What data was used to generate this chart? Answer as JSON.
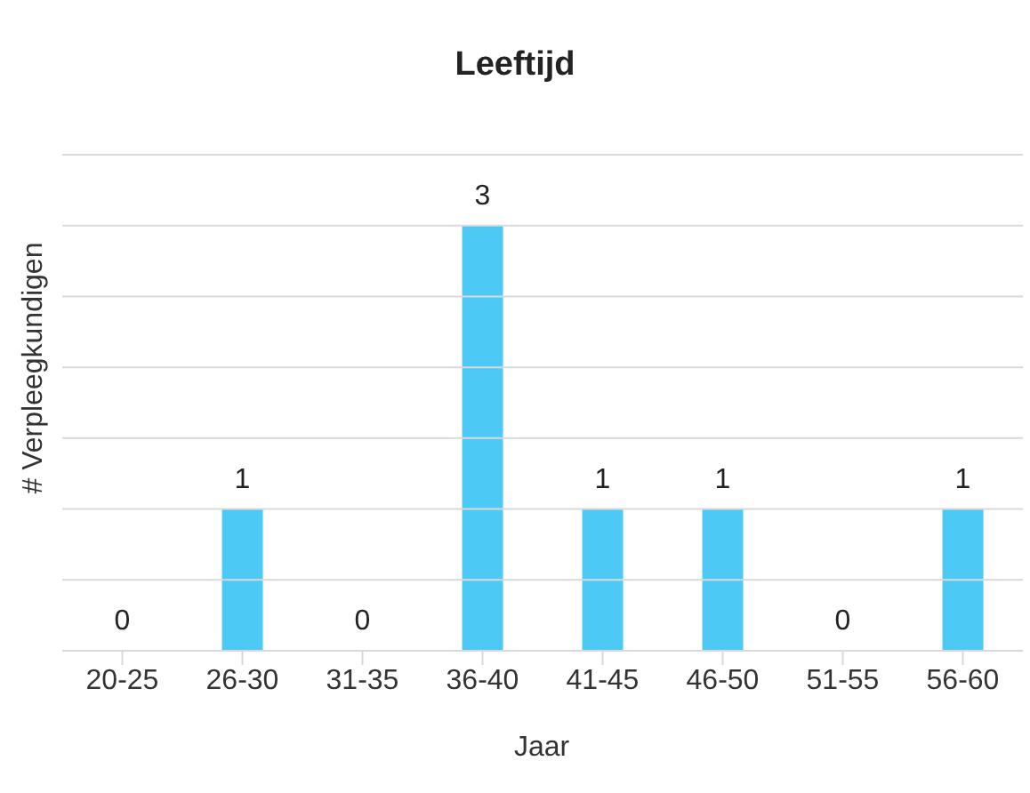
{
  "chart_data": {
    "type": "bar",
    "title": "Leeftijd",
    "xlabel": "Jaar",
    "ylabel": "# Verpleegkundigen",
    "categories": [
      "20-25",
      "26-30",
      "31-35",
      "36-40",
      "41-45",
      "46-50",
      "51-55",
      "56-60"
    ],
    "values": [
      0,
      1,
      0,
      3,
      1,
      1,
      0,
      1
    ],
    "color": "#4dc9f6",
    "ylim": [
      0,
      3.5
    ],
    "yticks": [
      {
        "value": 0,
        "label": null
      },
      {
        "value": 0.5,
        "label": null
      },
      {
        "value": 1,
        "label": null
      },
      {
        "value": 1.5,
        "label": null
      },
      {
        "value": 2,
        "label": null
      },
      {
        "value": 2.5,
        "label": null
      },
      {
        "value": 3,
        "label": null
      },
      {
        "value": 3.5,
        "label": null
      }
    ],
    "grid": "y",
    "tick_labels": "x",
    "data_labels": true,
    "legend": false
  }
}
